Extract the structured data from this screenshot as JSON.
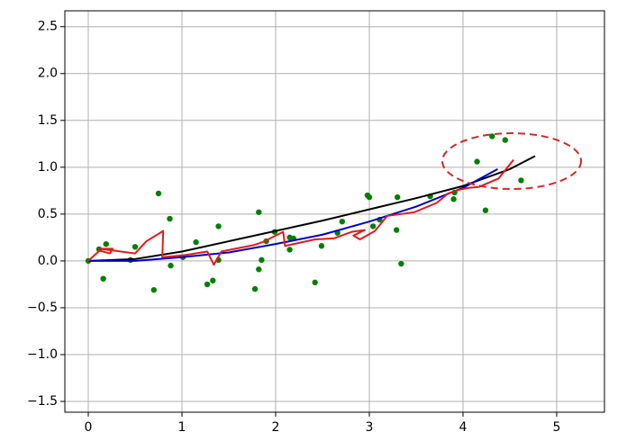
{
  "chart_data": {
    "type": "line",
    "xlim": [
      -0.25,
      5.51
    ],
    "ylim": [
      -1.615,
      2.67
    ],
    "xticks": [
      0,
      1,
      2,
      3,
      4,
      5
    ],
    "yticks": [
      {
        "value": -1.5,
        "label": "−1.5"
      },
      {
        "value": -1.0,
        "label": "−1.0"
      },
      {
        "value": -0.5,
        "label": "−0.5"
      },
      {
        "value": 0,
        "label": "0.0"
      },
      0.5,
      {
        "value": 1.0,
        "label": "1.0"
      },
      1.5,
      {
        "value": 2.0,
        "label": "2.0"
      },
      2.5
    ],
    "grid": true,
    "series": [
      {
        "type": "scatter",
        "color": "#008000",
        "x": [
          0,
          0.115,
          0.19,
          0.16,
          0.45,
          0.5,
          0.7,
          0.75,
          0.87,
          0.88,
          1.01,
          1.15,
          1.27,
          1.33,
          1.39,
          1.39,
          1.78,
          1.82,
          1.82,
          1.85,
          1.9,
          1.99,
          2.15,
          2.15,
          2.19,
          2.42,
          2.49,
          2.66,
          2.71,
          2.98,
          3.0,
          3.04,
          3.11,
          3.29,
          3.3,
          3.34,
          3.65,
          3.9,
          3.91,
          4.15,
          4.24,
          4.31,
          4.45,
          4.62
        ],
        "values": [
          0,
          0.125,
          0.18,
          -0.19,
          0.01,
          0.15,
          -0.31,
          0.72,
          0.45,
          -0.05,
          0.04,
          0.2,
          -0.25,
          -0.21,
          0.01,
          0.37,
          -0.3,
          0.52,
          -0.09,
          0.01,
          0.21,
          0.31,
          0.25,
          0.12,
          0.24,
          -0.23,
          0.16,
          0.3,
          0.42,
          0.7,
          0.68,
          0.37,
          0.44,
          0.33,
          0.68,
          -0.03,
          0.69,
          0.66,
          0.73,
          1.06,
          0.54,
          1.33,
          1.29,
          0.86
        ]
      },
      {
        "type": "line",
        "color": "#000000",
        "x": [
          0,
          0.5,
          1,
          1.5,
          2,
          2.5,
          3,
          3.5,
          4,
          4.5,
          4.77
        ],
        "values": [
          0,
          0.02,
          0.1,
          0.21,
          0.32,
          0.43,
          0.55,
          0.67,
          0.8,
          0.98,
          1.12
        ]
      },
      {
        "type": "line",
        "color": "#0000cc",
        "x": [
          0,
          0.5,
          1,
          1.5,
          2,
          2.5,
          3,
          3.5,
          4,
          4.37
        ],
        "values": [
          0,
          0,
          0.04,
          0.09,
          0.18,
          0.28,
          0.42,
          0.58,
          0.78,
          0.98
        ]
      },
      {
        "type": "line",
        "color": "#e41a1c",
        "x": [
          0,
          0.12,
          0.23,
          0.26,
          0.12,
          0.5,
          0.62,
          0.8,
          0.79,
          1.02,
          1.27,
          1.32,
          1.34,
          1.42,
          1.77,
          1.86,
          2.08,
          2.1,
          2.42,
          2.62,
          2.81,
          2.95,
          2.83,
          2.9,
          3.06,
          3.19,
          3.41,
          3.48,
          3.72,
          3.84,
          3.96,
          4.06,
          4.17,
          4.38,
          4.54
        ],
        "values": [
          0,
          0.11,
          0.08,
          0.13,
          0.13,
          0.08,
          0.21,
          0.32,
          0.04,
          0.06,
          0.1,
          0,
          -0.04,
          0.1,
          0.17,
          0.2,
          0.31,
          0.16,
          0.23,
          0.24,
          0.31,
          0.33,
          0.27,
          0.23,
          0.32,
          0.48,
          0.51,
          0.52,
          0.62,
          0.72,
          0.76,
          0.78,
          0.79,
          0.88,
          1.08
        ]
      }
    ]
  }
}
